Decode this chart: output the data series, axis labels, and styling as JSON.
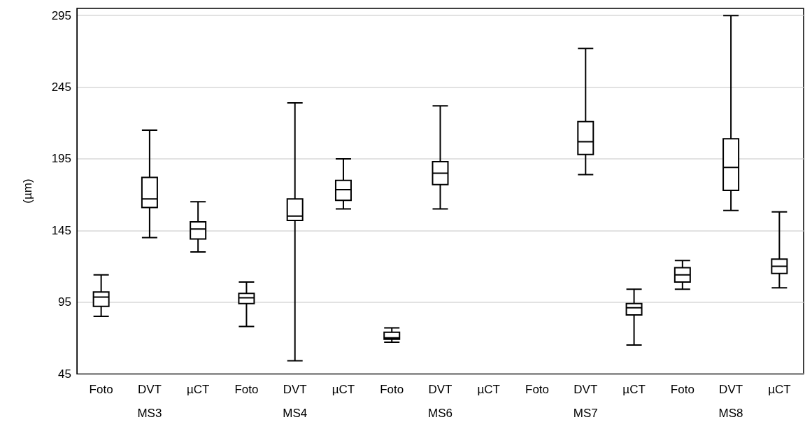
{
  "chart_data": {
    "type": "box",
    "ylabel": "(µm)",
    "categories": [
      "Foto",
      "DVT",
      "µCT",
      "Foto",
      "DVT",
      "µCT",
      "Foto",
      "DVT",
      "µCT",
      "Foto",
      "DVT",
      "µCT",
      "Foto",
      "DVT",
      "µCT"
    ],
    "annotations": [
      "MS3",
      "MS4",
      "MS6",
      "MS7",
      "MS8"
    ],
    "ylim": [
      45,
      300
    ],
    "yticks": [
      45,
      95,
      145,
      195,
      245,
      295
    ],
    "grid": "y",
    "color": "#000000",
    "boxes": [
      {
        "low": 85,
        "q1": 92,
        "median": 98.5,
        "q3": 102,
        "high": 114
      },
      {
        "low": 140,
        "q1": 161,
        "median": 167,
        "q3": 182,
        "high": 215
      },
      {
        "low": 130,
        "q1": 139,
        "median": 146,
        "q3": 151,
        "high": 165
      },
      {
        "low": 78,
        "q1": 94,
        "median": 98,
        "q3": 101,
        "high": 109
      },
      {
        "low": 54,
        "q1": 152,
        "median": 155,
        "q3": 167,
        "high": 234
      },
      {
        "low": 160,
        "q1": 166,
        "median": 173.5,
        "q3": 180,
        "high": 195
      },
      {
        "low": 67,
        "q1": 69,
        "median": 70,
        "q3": 74,
        "high": 77
      },
      {
        "low": 160,
        "q1": 177,
        "median": 185,
        "q3": 193,
        "high": 232
      },
      null,
      null,
      {
        "low": 184,
        "q1": 198,
        "median": 207,
        "q3": 221,
        "high": 272
      },
      {
        "low": 65,
        "q1": 86,
        "median": 91,
        "q3": 94,
        "high": 104
      },
      {
        "low": 104,
        "q1": 109,
        "median": 114,
        "q3": 119,
        "high": 124
      },
      {
        "low": 159,
        "q1": 173,
        "median": 189,
        "q3": 209,
        "high": 295
      },
      {
        "low": 105,
        "q1": 115,
        "median": 120,
        "q3": 125,
        "high": 158
      }
    ]
  }
}
